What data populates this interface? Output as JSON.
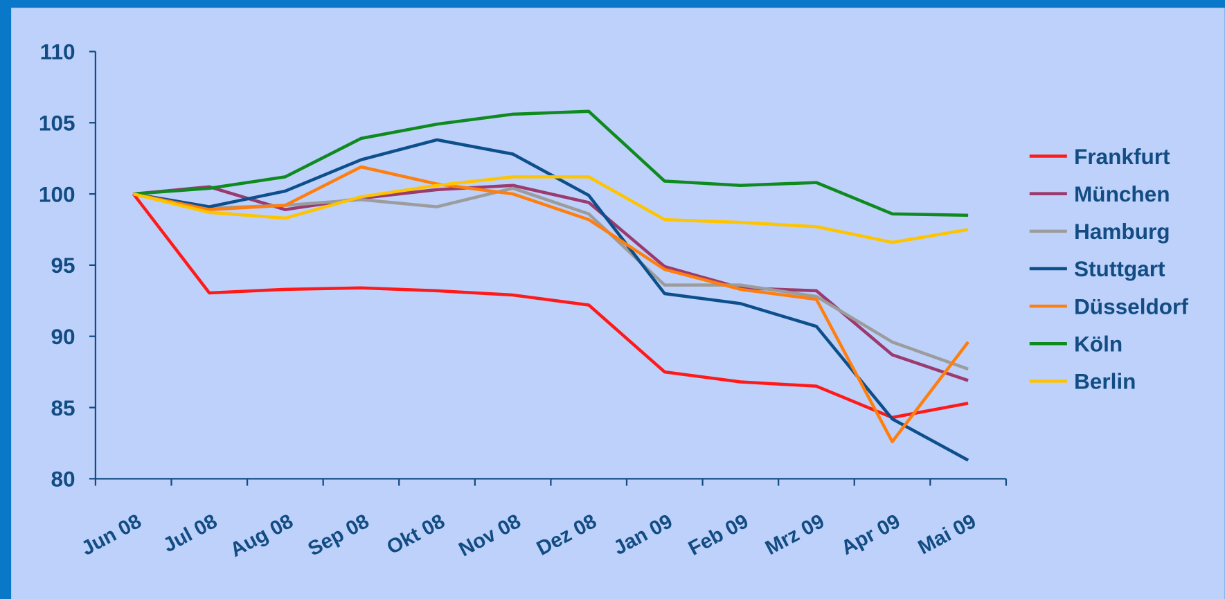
{
  "chart_data": {
    "type": "line",
    "categories": [
      "Jun 08",
      "Jul 08",
      "Aug 08",
      "Sep 08",
      "Okt 08",
      "Nov 08",
      "Dez 08",
      "Jan 09",
      "Feb 09",
      "Mrz 09",
      "Apr 09",
      "Mai 09"
    ],
    "ylim": [
      80,
      110
    ],
    "yticks": [
      80,
      85,
      90,
      95,
      100,
      105,
      110
    ],
    "legend": "right",
    "series": [
      {
        "name": "Frankfurt",
        "color": "#ff1a1a",
        "values": [
          100,
          93.05,
          93.3,
          93.4,
          93.2,
          92.9,
          92.2,
          87.5,
          86.8,
          86.5,
          84.3,
          85.3
        ]
      },
      {
        "name": "München",
        "color": "#9b3a6e",
        "values": [
          100,
          100.5,
          98.9,
          99.7,
          100.3,
          100.6,
          99.4,
          94.9,
          93.4,
          93.2,
          88.7,
          86.9
        ]
      },
      {
        "name": "Hamburg",
        "color": "#9c9c9c",
        "values": [
          100,
          99.0,
          99.2,
          99.6,
          99.1,
          100.4,
          98.6,
          93.6,
          93.6,
          92.8,
          89.6,
          87.7
        ]
      },
      {
        "name": "Stuttgart",
        "color": "#0d4f8a",
        "values": [
          100,
          99.1,
          100.2,
          102.4,
          103.8,
          102.8,
          99.9,
          93.0,
          92.3,
          90.7,
          84.2,
          81.3
        ]
      },
      {
        "name": "Düsseldorf",
        "color": "#ff7f0e",
        "values": [
          100,
          98.9,
          99.2,
          101.9,
          100.7,
          100.0,
          98.2,
          94.7,
          93.3,
          92.6,
          82.6,
          89.6
        ]
      },
      {
        "name": "Köln",
        "color": "#0e8a1e",
        "values": [
          100,
          100.4,
          101.2,
          103.9,
          104.9,
          105.6,
          105.8,
          100.9,
          100.6,
          100.8,
          98.6,
          98.5
        ]
      },
      {
        "name": "Berlin",
        "color": "#ffc400",
        "values": [
          100,
          98.7,
          98.3,
          99.8,
          100.6,
          101.2,
          101.2,
          98.2,
          98.0,
          97.7,
          96.6,
          97.5
        ]
      }
    ]
  }
}
